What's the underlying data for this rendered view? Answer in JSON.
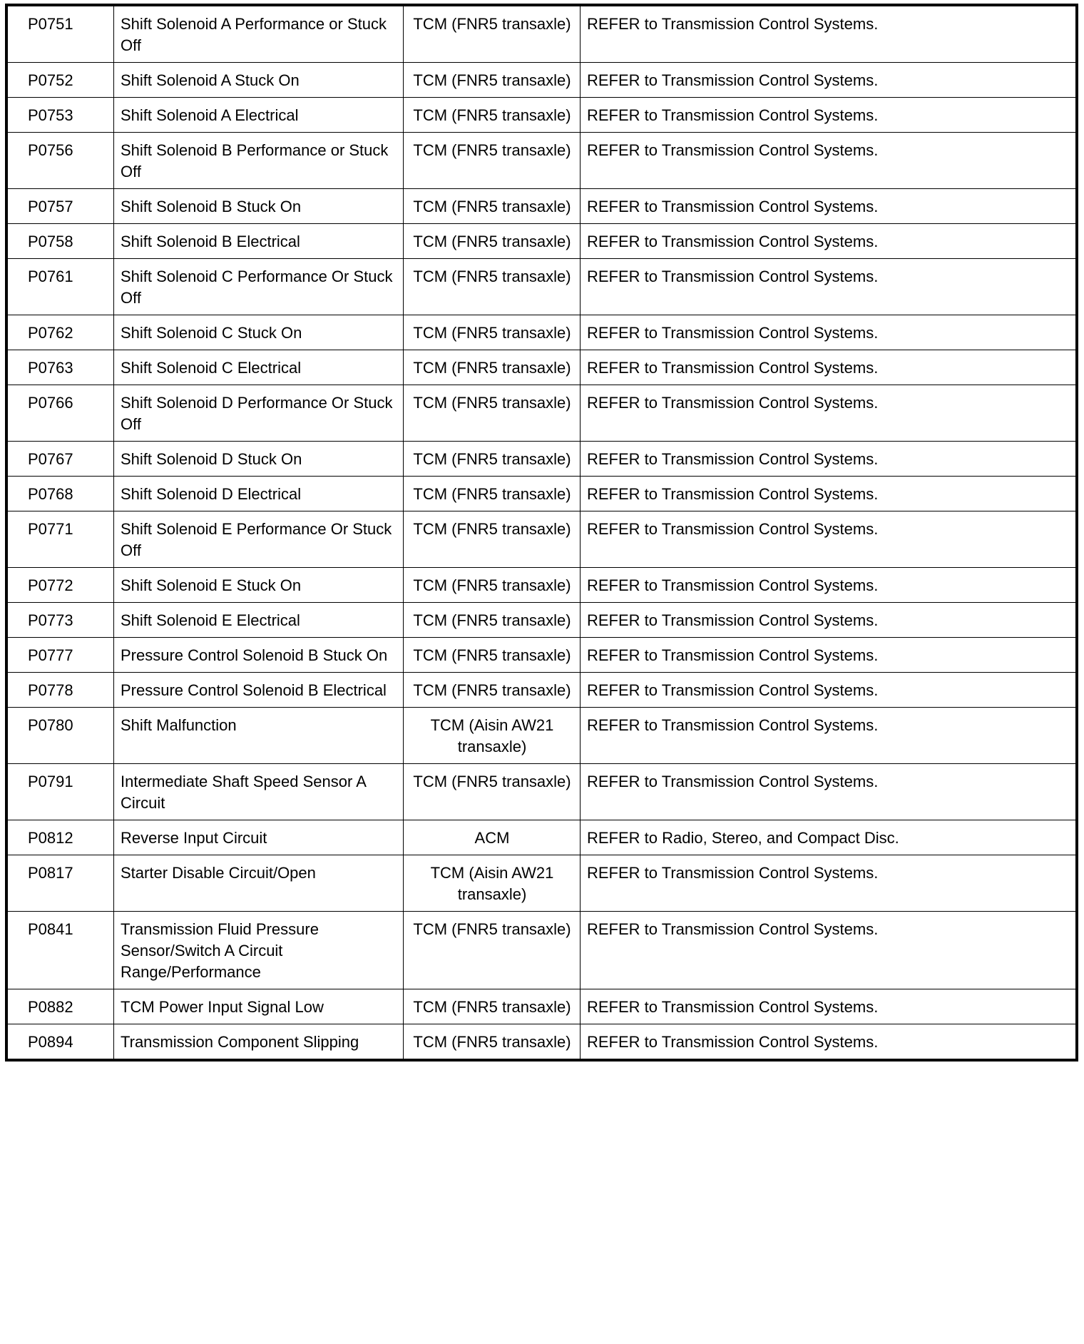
{
  "rows": [
    {
      "code": "P0751",
      "description": "Shift Solenoid A Performance or Stuck Off",
      "module": "TCM (FNR5 transaxle)",
      "action": "REFER to Transmission Control Systems."
    },
    {
      "code": "P0752",
      "description": "Shift Solenoid A Stuck On",
      "module": "TCM (FNR5 transaxle)",
      "action": "REFER to Transmission Control Systems."
    },
    {
      "code": "P0753",
      "description": "Shift Solenoid A Electrical",
      "module": "TCM (FNR5 transaxle)",
      "action": "REFER to Transmission Control Systems."
    },
    {
      "code": "P0756",
      "description": "Shift Solenoid B Performance or Stuck Off",
      "module": "TCM (FNR5 transaxle)",
      "action": "REFER to Transmission Control Systems."
    },
    {
      "code": "P0757",
      "description": "Shift Solenoid B Stuck On",
      "module": "TCM (FNR5 transaxle)",
      "action": "REFER to Transmission Control Systems."
    },
    {
      "code": "P0758",
      "description": "Shift Solenoid B Electrical",
      "module": "TCM (FNR5 transaxle)",
      "action": "REFER to Transmission Control Systems."
    },
    {
      "code": "P0761",
      "description": "Shift Solenoid C Performance Or Stuck Off",
      "module": "TCM (FNR5 transaxle)",
      "action": "REFER to Transmission Control Systems."
    },
    {
      "code": "P0762",
      "description": "Shift Solenoid C Stuck On",
      "module": "TCM (FNR5 transaxle)",
      "action": "REFER to Transmission Control Systems."
    },
    {
      "code": "P0763",
      "description": "Shift Solenoid C Electrical",
      "module": "TCM (FNR5 transaxle)",
      "action": "REFER to Transmission Control Systems."
    },
    {
      "code": "P0766",
      "description": "Shift Solenoid D Performance Or Stuck Off",
      "module": "TCM (FNR5 transaxle)",
      "action": "REFER to Transmission Control Systems."
    },
    {
      "code": "P0767",
      "description": "Shift Solenoid D Stuck On",
      "module": "TCM (FNR5 transaxle)",
      "action": "REFER to Transmission Control Systems."
    },
    {
      "code": "P0768",
      "description": "Shift Solenoid D Electrical",
      "module": "TCM (FNR5 transaxle)",
      "action": "REFER to Transmission Control Systems."
    },
    {
      "code": "P0771",
      "description": "Shift Solenoid E Performance Or Stuck Off",
      "module": "TCM (FNR5 transaxle)",
      "action": "REFER to Transmission Control Systems."
    },
    {
      "code": "P0772",
      "description": "Shift Solenoid E Stuck On",
      "module": "TCM (FNR5 transaxle)",
      "action": "REFER to Transmission Control Systems."
    },
    {
      "code": "P0773",
      "description": "Shift Solenoid E Electrical",
      "module": "TCM (FNR5 transaxle)",
      "action": "REFER to Transmission Control Systems."
    },
    {
      "code": "P0777",
      "description": "Pressure Control Solenoid B Stuck On",
      "module": "TCM (FNR5 transaxle)",
      "action": "REFER to Transmission Control Systems."
    },
    {
      "code": "P0778",
      "description": "Pressure Control Solenoid B Electrical",
      "module": "TCM (FNR5 transaxle)",
      "action": "REFER to Transmission Control Systems."
    },
    {
      "code": "P0780",
      "description": "Shift Malfunction",
      "module": "TCM (Aisin AW21 transaxle)",
      "action": "REFER to Transmission Control Systems."
    },
    {
      "code": "P0791",
      "description": "Intermediate Shaft Speed Sensor A Circuit",
      "module": "TCM (FNR5 transaxle)",
      "action": "REFER to Transmission Control Systems."
    },
    {
      "code": "P0812",
      "description": "Reverse Input Circuit",
      "module": "ACM",
      "action": "REFER to Radio, Stereo, and Compact Disc."
    },
    {
      "code": "P0817",
      "description": "Starter Disable Circuit/Open",
      "module": "TCM (Aisin AW21 transaxle)",
      "action": "REFER to Transmission Control Systems."
    },
    {
      "code": "P0841",
      "description": "Transmission Fluid Pressure Sensor/Switch A Circuit Range/Performance",
      "module": "TCM (FNR5 transaxle)",
      "action": "REFER to Transmission Control Systems."
    },
    {
      "code": "P0882",
      "description": "TCM Power Input Signal Low",
      "module": "TCM (FNR5 transaxle)",
      "action": "REFER to Transmission Control Systems."
    },
    {
      "code": "P0894",
      "description": "Transmission Component Slipping",
      "module": "TCM (FNR5 transaxle)",
      "action": "REFER to Transmission Control Systems."
    }
  ]
}
